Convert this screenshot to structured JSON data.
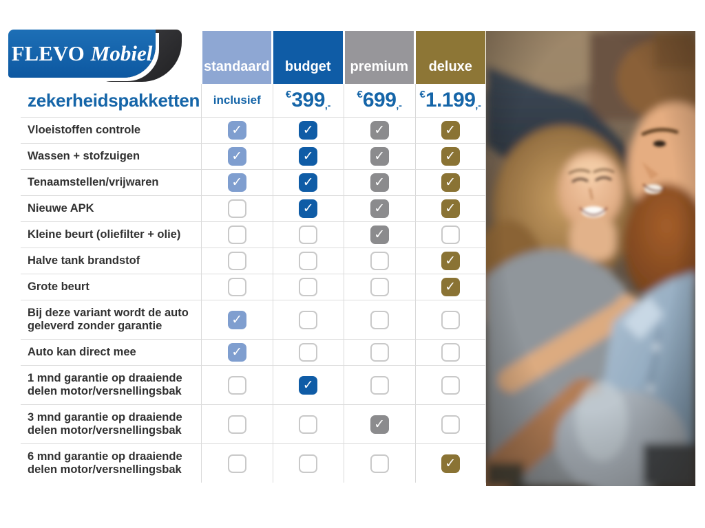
{
  "logo": {
    "primary": "FLEVO",
    "secondary": "Mobiel"
  },
  "title": "zekerheidspakketten",
  "icons": {
    "check": "✓"
  },
  "accent_color": "#1565a8",
  "packages": [
    {
      "id": "standaard",
      "label": "standaard",
      "price": {
        "text": "inclusief"
      },
      "header_bg": "#8ea7d3",
      "check_bg": "#7f9ecf"
    },
    {
      "id": "budget",
      "label": "budget",
      "price": {
        "currency": "€",
        "amount": "399",
        "suffix": ",-"
      },
      "header_bg": "#0f5ca6",
      "check_bg": "#0f5ca6"
    },
    {
      "id": "premium",
      "label": "premium",
      "price": {
        "currency": "€",
        "amount": "699",
        "suffix": ",-"
      },
      "header_bg": "#97969a",
      "check_bg": "#8b8b8d"
    },
    {
      "id": "deluxe",
      "label": "deluxe",
      "price": {
        "currency": "€",
        "amount": "1.199",
        "suffix": ",-"
      },
      "header_bg": "#8d7636",
      "check_bg": "#8a7334"
    }
  ],
  "features": [
    {
      "label": "Vloeistoffen controle",
      "included": [
        true,
        true,
        true,
        true
      ]
    },
    {
      "label": "Wassen + stofzuigen",
      "included": [
        true,
        true,
        true,
        true
      ]
    },
    {
      "label": "Tenaamstellen/vrijwaren",
      "included": [
        true,
        true,
        true,
        true
      ]
    },
    {
      "label": "Nieuwe APK",
      "included": [
        false,
        true,
        true,
        true
      ]
    },
    {
      "label": "Kleine beurt (oliefilter + olie)",
      "included": [
        false,
        false,
        true,
        false
      ]
    },
    {
      "label": "Halve tank brandstof",
      "included": [
        false,
        false,
        false,
        true
      ]
    },
    {
      "label": "Grote beurt",
      "included": [
        false,
        false,
        false,
        true
      ]
    },
    {
      "label": "Bij deze variant wordt de auto geleverd zonder garantie",
      "included": [
        true,
        false,
        false,
        false
      ]
    },
    {
      "label": "Auto kan direct mee",
      "included": [
        true,
        false,
        false,
        false
      ]
    },
    {
      "label": "1 mnd garantie op draaiende delen motor/versnellingsbak",
      "included": [
        false,
        true,
        false,
        false
      ]
    },
    {
      "label": "3 mnd garantie op draaiende delen motor/versnellingsbak",
      "included": [
        false,
        false,
        true,
        false
      ]
    },
    {
      "label": "6 mnd garantie op draaiende delen motor/versnellingsbak",
      "included": [
        false,
        false,
        false,
        true
      ]
    }
  ]
}
